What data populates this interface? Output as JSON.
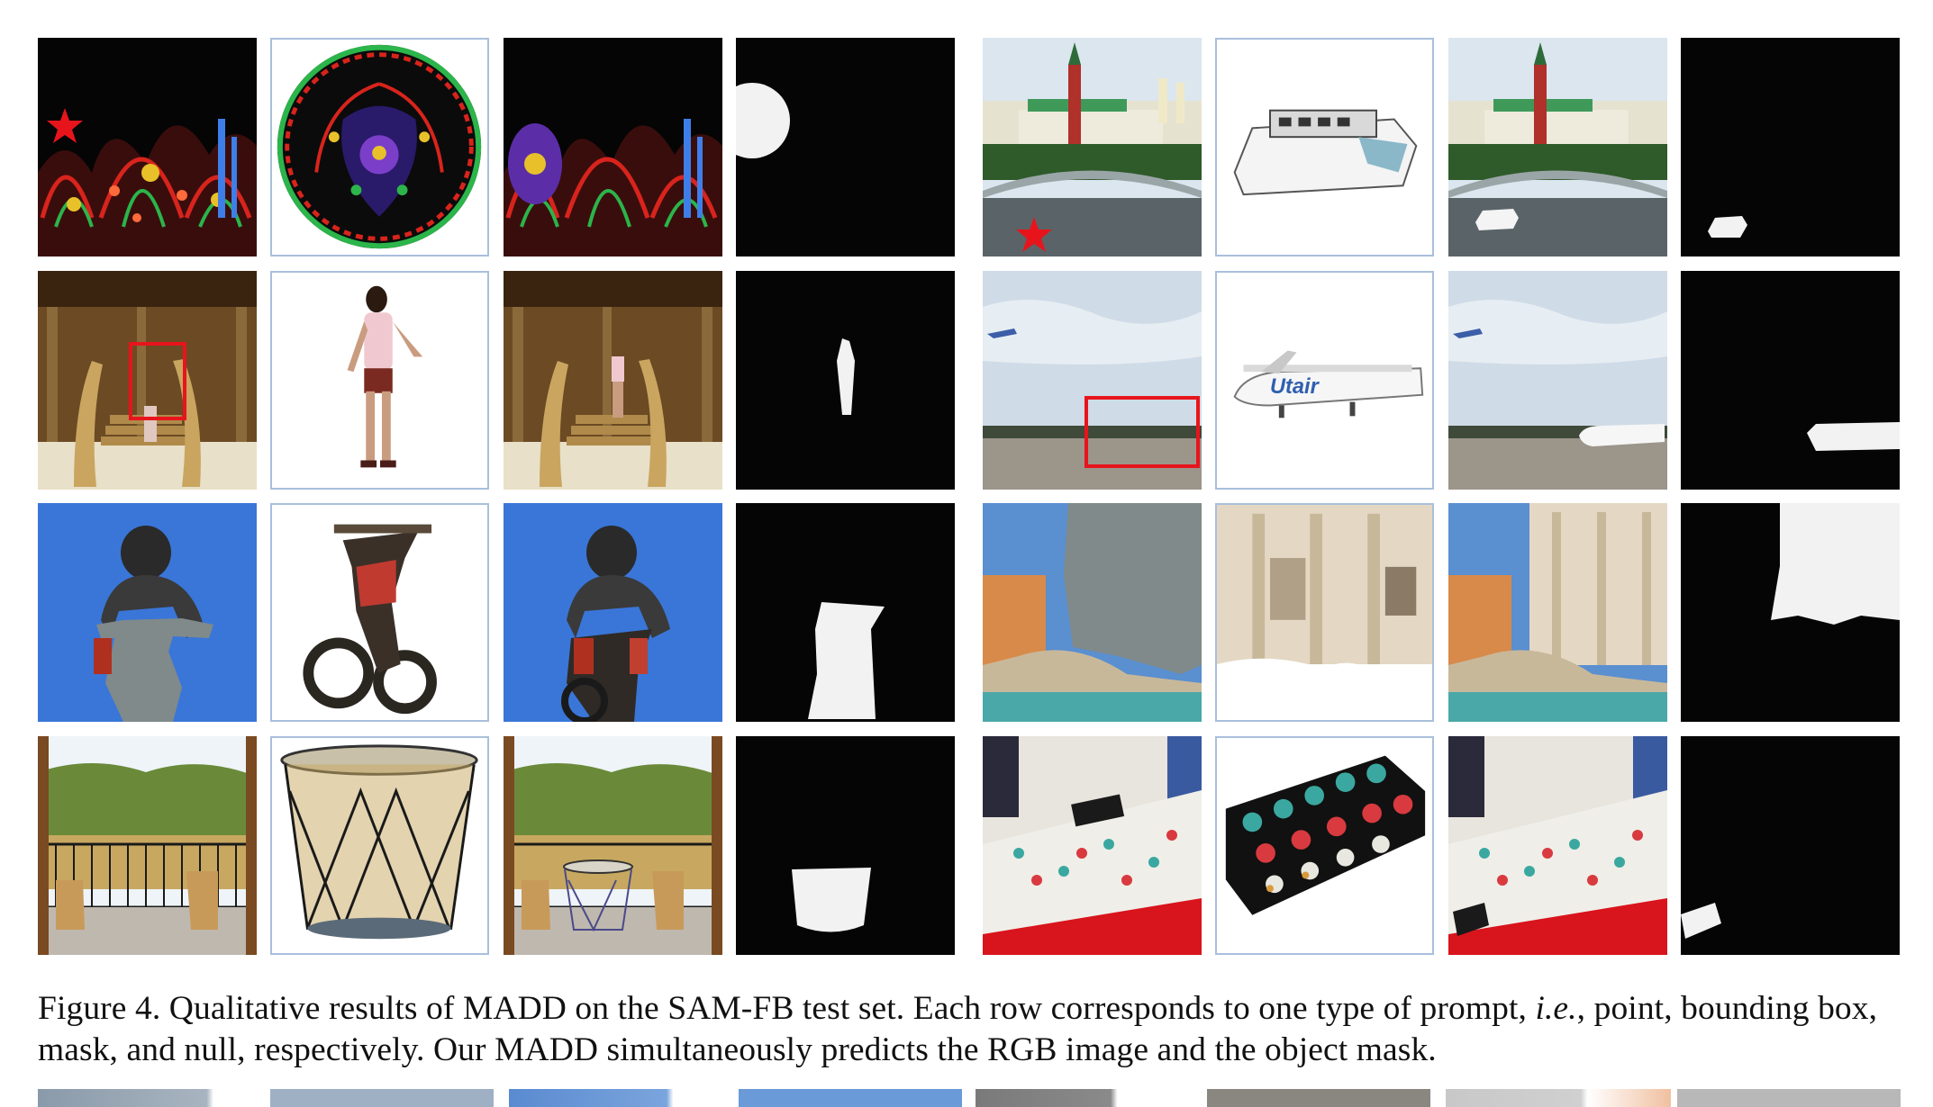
{
  "figure": {
    "label": "Figure 4.",
    "caption_part1": " Qualitative results of MADD on the SAM-FB test set. Each row corresponds to one type of prompt, ",
    "caption_italic": "i.e.",
    "caption_part2": ", point, bounding box, mask, and null, respectively. Our MADD simultaneously predicts the RGB image and the object mask."
  },
  "grid": {
    "rows": 4,
    "groups_per_row": 2,
    "columns_per_group": [
      "background with prompt",
      "foreground",
      "composite",
      "mask"
    ],
    "row_prompts": [
      "point",
      "bounding box",
      "mask",
      "null"
    ]
  },
  "colors": {
    "prompt_marker": "#e8141c",
    "mask_fill": "#808a8a",
    "frame_border": "#a9bfdc"
  },
  "icons": {
    "point_prompt": "star-icon",
    "box_prompt": "rectangle-outline"
  }
}
